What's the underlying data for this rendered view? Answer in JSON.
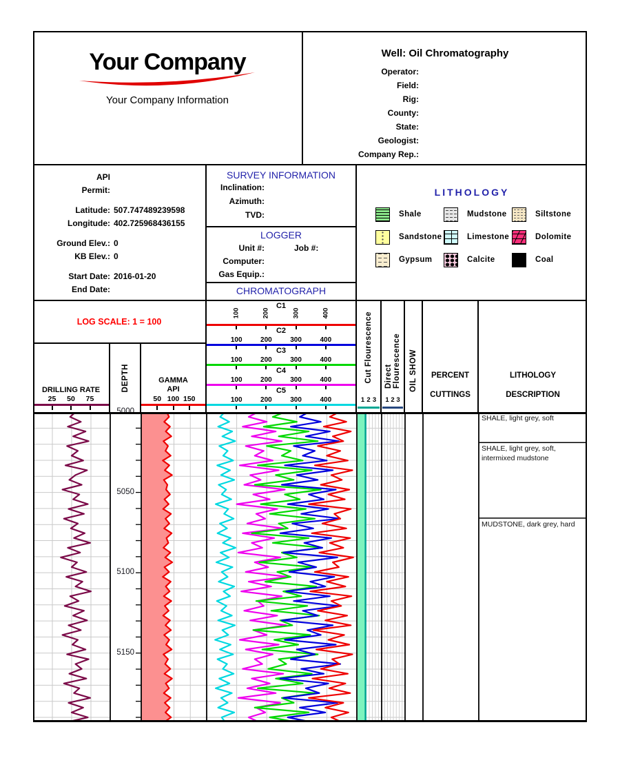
{
  "company": {
    "name": "Your Company",
    "tagline": "Your Company Information",
    "swoosh_color": "#E00000"
  },
  "well": {
    "title": "Well: Oil Chromatography",
    "fields": [
      "Operator:",
      "Field:",
      "Rig:",
      "County:",
      "State:",
      "Geologist:",
      "Company Rep.:"
    ]
  },
  "api_panel": {
    "lines": [
      {
        "label": "API",
        "value": ""
      },
      {
        "label": "Permit:",
        "value": ""
      },
      {
        "gap": true
      },
      {
        "label": "Latitude:",
        "value": "507.747489239598"
      },
      {
        "label": "Longitude:",
        "value": "402.725968436155"
      },
      {
        "gap": true
      },
      {
        "label": "Ground Elev.:",
        "value": "0"
      },
      {
        "label": "KB Elev.:",
        "value": "0"
      },
      {
        "gap": true
      },
      {
        "label": "Start Date:",
        "value": "2016-01-20"
      },
      {
        "label": "End Date:",
        "value": ""
      }
    ]
  },
  "survey": {
    "title": "SURVEY INFORMATION",
    "fields": [
      {
        "label": "Inclination:"
      },
      {
        "label": "Azimuth:"
      },
      {
        "label": "TVD:"
      }
    ]
  },
  "logger": {
    "title": "LOGGER",
    "unit_label": "Unit #:",
    "job_label": "Job #:",
    "computer_label": "Computer:",
    "gas_label": "Gas Equip.:"
  },
  "chromatograph": {
    "title": "CHROMATOGRAPH"
  },
  "legend": {
    "title": "LITHOLOGY",
    "items": [
      {
        "name": "Shale",
        "pattern": "shale"
      },
      {
        "name": "Mudstone",
        "pattern": "mudstone"
      },
      {
        "name": "Siltstone",
        "pattern": "siltstone"
      },
      {
        "name": "Sandstone",
        "pattern": "sandstone"
      },
      {
        "name": "Limestone",
        "pattern": "limestone"
      },
      {
        "name": "Dolomite",
        "pattern": "dolomite"
      },
      {
        "name": "Gypsum",
        "pattern": "gypsum"
      },
      {
        "name": "Calcite",
        "pattern": "calcite"
      },
      {
        "name": "Coal",
        "pattern": "coal"
      }
    ]
  },
  "log_scale": {
    "label": "LOG SCALE:  1 = 100",
    "color": "#FF0000"
  },
  "track_headers": {
    "drilling": {
      "title": "DRILLING RATE",
      "ticks": [
        25,
        50,
        75
      ],
      "max": 100,
      "color": "#7B0A48"
    },
    "depth": {
      "title": "DEPTH"
    },
    "gamma": {
      "title": "GAMMA",
      "subtitle": "API",
      "ticks": [
        50,
        100,
        150
      ],
      "max": 200,
      "color": "#EE0000"
    },
    "channels": [
      {
        "name": "C1",
        "color": "#EE0000",
        "ticks": [
          100,
          200,
          300,
          400
        ],
        "max": 500,
        "rotated": true
      },
      {
        "name": "C2",
        "color": "#0000DD",
        "ticks": [
          100,
          200,
          300,
          400
        ],
        "max": 500,
        "rotated": false
      },
      {
        "name": "C3",
        "color": "#00D800",
        "ticks": [
          100,
          200,
          300,
          400
        ],
        "max": 500,
        "rotated": false
      },
      {
        "name": "C4",
        "color": "#EE00EE",
        "ticks": [
          100,
          200,
          300,
          400
        ],
        "max": 500,
        "rotated": false
      },
      {
        "name": "C5",
        "color": "#00D8E0",
        "ticks": [
          100,
          200,
          300,
          400
        ],
        "max": 500,
        "rotated": false
      }
    ],
    "cut": {
      "title": "Cut Flourescence",
      "ticks": [
        1,
        2,
        3
      ],
      "max": 4,
      "color": "#00A693"
    },
    "direct": {
      "title": "Direct Flourescence",
      "ticks": [
        1,
        2,
        3
      ],
      "max": 4,
      "color": "#26477E"
    },
    "oil_show": {
      "title": "OIL SHOW"
    },
    "percent": {
      "line1": "PERCENT",
      "line2": "CUTTINGS"
    },
    "lith": {
      "line1": "LITHOLOGY",
      "line2": "DESCRIPTION"
    }
  },
  "chart_data": {
    "type": "line",
    "depth_top": 5000,
    "depth_bottom": 5193,
    "depth_tick_interval": 10,
    "depth_labels": [
      5000,
      5050,
      5100,
      5150
    ],
    "grid_color": "#C9C9C9",
    "series": [
      {
        "name": "Drilling Rate",
        "track": "drilling",
        "color": "#7B0A48",
        "scale_max": 100,
        "values": [
          55,
          48,
          62,
          45,
          68,
          52,
          72,
          44,
          58,
          50,
          65,
          42,
          70,
          55,
          47,
          63,
          38,
          60,
          52,
          71,
          46,
          66,
          40,
          58,
          49,
          67,
          53,
          74,
          45,
          61,
          36,
          57,
          50,
          69,
          43,
          64,
          55,
          75,
          48,
          59,
          41,
          66,
          52,
          70,
          46,
          62,
          38,
          58,
          51,
          68,
          44,
          72,
          55,
          63,
          47,
          69,
          40,
          60,
          53,
          74,
          46,
          65,
          50,
          71,
          44
        ]
      },
      {
        "name": "Gamma",
        "track": "gamma",
        "color": "#EE0000",
        "fill": "#FC9090",
        "scale_max": 200,
        "values": [
          78,
          85,
          70,
          88,
          75,
          92,
          68,
          82,
          74,
          90,
          66,
          86,
          72,
          94,
          69,
          80,
          76,
          88,
          71,
          84,
          67,
          91,
          74,
          86,
          70,
          93,
          77,
          83,
          68,
          89,
          73,
          95,
          71,
          85,
          66,
          90,
          75,
          87,
          69,
          92,
          72,
          84,
          67,
          88,
          74,
          91,
          70,
          86,
          76,
          93,
          68,
          82,
          73,
          89,
          71,
          94,
          75,
          85,
          69,
          90,
          72,
          87,
          74,
          91,
          70
        ]
      },
      {
        "name": "C5",
        "track": "chroma",
        "color": "#00D8E0",
        "scale_max": 500,
        "values": [
          60,
          45,
          75,
          38,
          85,
          52,
          95,
          42,
          70,
          55,
          88,
          35,
          78,
          48,
          92,
          40,
          65,
          50,
          82,
          30,
          72,
          58,
          90,
          44,
          68,
          36,
          80,
          54,
          96,
          46,
          74,
          32,
          86,
          50,
          70,
          40,
          92,
          56,
          78,
          34,
          66,
          48,
          84,
          38,
          94,
          52,
          72,
          28,
          80,
          44,
          88,
          36,
          68,
          54,
          90,
          42,
          76,
          30,
          84,
          48,
          70,
          38,
          92,
          50,
          62
        ]
      },
      {
        "name": "C4",
        "track": "chroma",
        "color": "#EE00EE",
        "scale_max": 500,
        "values": [
          170,
          140,
          200,
          120,
          230,
          150,
          250,
          130,
          190,
          160,
          220,
          110,
          240,
          145,
          180,
          125,
          260,
          155,
          210,
          100,
          235,
          165,
          195,
          135,
          255,
          120,
          225,
          150,
          185,
          105,
          245,
          160,
          205,
          130,
          270,
          140,
          215,
          115,
          250,
          170,
          190,
          125,
          235,
          145,
          265,
          155,
          200,
          110,
          240,
          130,
          220,
          160,
          185,
          120,
          255,
          150,
          210,
          135,
          230,
          105,
          245,
          165,
          195,
          140,
          175
        ]
      },
      {
        "name": "C3",
        "track": "chroma",
        "color": "#00D800",
        "scale_max": 500,
        "values": [
          260,
          220,
          300,
          190,
          340,
          240,
          370,
          200,
          280,
          250,
          320,
          170,
          350,
          230,
          290,
          160,
          380,
          260,
          310,
          180,
          330,
          210,
          360,
          240,
          270,
          150,
          340,
          220,
          385,
          250,
          300,
          175,
          355,
          235,
          280,
          195,
          365,
          255,
          315,
          165,
          335,
          215,
          375,
          245,
          285,
          155,
          345,
          225,
          305,
          185,
          370,
          240,
          265,
          205,
          350,
          230,
          320,
          170,
          360,
          250,
          290,
          160,
          340,
          210,
          300
        ]
      },
      {
        "name": "C2",
        "track": "chroma",
        "color": "#0000DD",
        "scale_max": 500,
        "values": [
          340,
          310,
          380,
          280,
          410,
          330,
          440,
          290,
          360,
          320,
          400,
          260,
          420,
          300,
          370,
          250,
          430,
          340,
          390,
          270,
          405,
          315,
          445,
          285,
          355,
          245,
          415,
          325,
          385,
          255,
          435,
          305,
          365,
          275,
          425,
          345,
          395,
          265,
          410,
          290,
          440,
          320,
          370,
          250,
          420,
          335,
          380,
          260,
          430,
          300,
          360,
          280,
          445,
          315,
          390,
          245,
          405,
          330,
          375,
          255,
          435,
          310,
          395,
          270,
          350
        ]
      },
      {
        "name": "C1",
        "track": "chroma",
        "color": "#EE0000",
        "scale_max": 500,
        "values": [
          440,
          410,
          465,
          390,
          480,
          420,
          455,
          370,
          445,
          400,
          470,
          360,
          485,
          415,
          450,
          380,
          475,
          405,
          460,
          340,
          480,
          425,
          445,
          385,
          465,
          350,
          478,
          410,
          455,
          375,
          488,
          420,
          440,
          360,
          472,
          400,
          462,
          345,
          482,
          415,
          448,
          370,
          468,
          395,
          480,
          355,
          458,
          405,
          475,
          365,
          485,
          418,
          442,
          380,
          470,
          352,
          462,
          408,
          478,
          340,
          455,
          395,
          472,
          415,
          450
        ]
      }
    ],
    "cut_fluorescence_bar": {
      "value": 1.4,
      "scale_max": 4,
      "fill": "#7DF3BE",
      "line_color": "#00A693"
    },
    "lith_sections": [
      {
        "top_depth": 5000,
        "text": "SHALE, light grey, soft"
      },
      {
        "top_depth": 5019,
        "text": "SHALE, light grey, soft, intermixed mudstone"
      },
      {
        "top_depth": 5066,
        "text": "MUDSTONE, dark grey, hard"
      }
    ]
  }
}
